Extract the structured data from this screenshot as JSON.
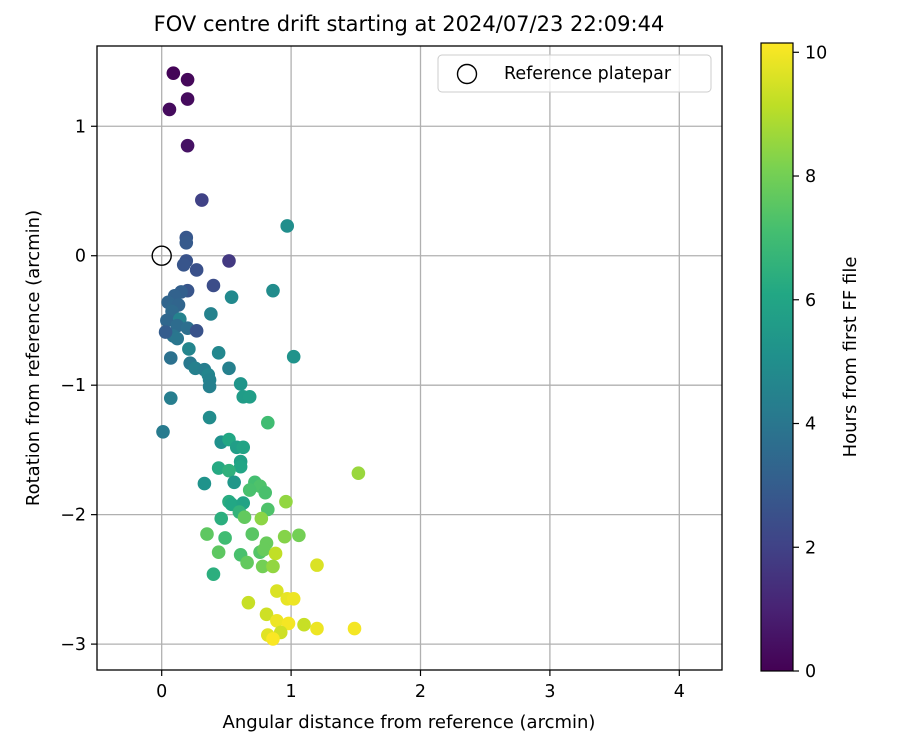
{
  "chart_data": {
    "type": "scatter",
    "title": "FOV centre drift starting at 2024/07/23 22:09:44",
    "xlabel": "Angular distance from reference (arcmin)",
    "ylabel": "Rotation from reference (arcmin)",
    "xlim": [
      -0.5,
      4.33
    ],
    "ylim": [
      -3.2,
      1.62
    ],
    "xticks": [
      0,
      1,
      2,
      3,
      4
    ],
    "xtick_labels": [
      "0",
      "1",
      "2",
      "3",
      "4"
    ],
    "yticks": [
      1,
      0,
      -1,
      -2,
      -3
    ],
    "ytick_labels": [
      "1",
      "0",
      "−1",
      "−2",
      "−3"
    ],
    "grid": true,
    "legend": {
      "label": "Reference platepar",
      "placement": "top-right",
      "marker": "open-circle"
    },
    "reference_point": {
      "x": 0,
      "y": 0
    },
    "colorbar": {
      "label": "Hours from first FF file",
      "colormap": "viridis",
      "range": [
        0,
        10.15
      ],
      "ticks": [
        0,
        2,
        4,
        6,
        8,
        10
      ],
      "tick_labels": [
        "0",
        "2",
        "4",
        "6",
        "8",
        "10"
      ]
    },
    "series": [
      {
        "colored_by": "hours",
        "points": [
          {
            "x": 0.09,
            "y": 1.41,
            "c": 0.1
          },
          {
            "x": 0.2,
            "y": 1.36,
            "c": 0.2
          },
          {
            "x": 0.2,
            "y": 1.21,
            "c": 0.3
          },
          {
            "x": 0.06,
            "y": 1.13,
            "c": 0.3
          },
          {
            "x": 0.2,
            "y": 0.85,
            "c": 0.5
          },
          {
            "x": 0.31,
            "y": 0.43,
            "c": 2.0
          },
          {
            "x": 0.19,
            "y": 0.14,
            "c": 2.8
          },
          {
            "x": 0.19,
            "y": 0.1,
            "c": 2.9
          },
          {
            "x": 0.52,
            "y": -0.04,
            "c": 1.7
          },
          {
            "x": 0.19,
            "y": -0.04,
            "c": 2.6
          },
          {
            "x": 0.17,
            "y": -0.07,
            "c": 2.7
          },
          {
            "x": 0.27,
            "y": -0.11,
            "c": 2.5
          },
          {
            "x": 0.4,
            "y": -0.23,
            "c": 2.4
          },
          {
            "x": 0.2,
            "y": -0.27,
            "c": 2.7
          },
          {
            "x": 0.15,
            "y": -0.28,
            "c": 3.1
          },
          {
            "x": 0.1,
            "y": -0.31,
            "c": 3.2
          },
          {
            "x": 0.05,
            "y": -0.36,
            "c": 3.3
          },
          {
            "x": 0.09,
            "y": -0.39,
            "c": 3.4
          },
          {
            "x": 0.13,
            "y": -0.38,
            "c": 3.3
          },
          {
            "x": 0.08,
            "y": -0.43,
            "c": 3.5
          },
          {
            "x": 0.04,
            "y": -0.5,
            "c": 3.4
          },
          {
            "x": 0.14,
            "y": -0.49,
            "c": 4.5
          },
          {
            "x": 0.12,
            "y": -0.54,
            "c": 3.6
          },
          {
            "x": 0.2,
            "y": -0.56,
            "c": 3.7
          },
          {
            "x": 0.27,
            "y": -0.58,
            "c": 2.6
          },
          {
            "x": 0.09,
            "y": -0.62,
            "c": 3.9
          },
          {
            "x": 0.12,
            "y": -0.64,
            "c": 4.0
          },
          {
            "x": 0.03,
            "y": -0.59,
            "c": 3.0
          },
          {
            "x": 0.21,
            "y": -0.72,
            "c": 4.6
          },
          {
            "x": 0.07,
            "y": -0.79,
            "c": 3.8
          },
          {
            "x": 0.22,
            "y": -0.83,
            "c": 4.1
          },
          {
            "x": 0.26,
            "y": -0.87,
            "c": 4.4
          },
          {
            "x": 0.33,
            "y": -0.88,
            "c": 4.3
          },
          {
            "x": 0.36,
            "y": -0.92,
            "c": 4.6
          },
          {
            "x": 0.37,
            "y": -0.96,
            "c": 4.5
          },
          {
            "x": 0.37,
            "y": -1.01,
            "c": 4.4
          },
          {
            "x": 0.44,
            "y": -0.75,
            "c": 4.7
          },
          {
            "x": 0.52,
            "y": -0.87,
            "c": 4.4
          },
          {
            "x": 0.38,
            "y": -0.45,
            "c": 4.5
          },
          {
            "x": 0.54,
            "y": -0.32,
            "c": 4.8
          },
          {
            "x": 0.86,
            "y": -0.27,
            "c": 4.9
          },
          {
            "x": 0.97,
            "y": 0.23,
            "c": 5.0
          },
          {
            "x": 1.02,
            "y": -0.78,
            "c": 5.2
          },
          {
            "x": 0.07,
            "y": -1.1,
            "c": 4.3
          },
          {
            "x": 0.01,
            "y": -1.36,
            "c": 4.2
          },
          {
            "x": 0.37,
            "y": -1.25,
            "c": 4.9
          },
          {
            "x": 0.61,
            "y": -0.99,
            "c": 5.3
          },
          {
            "x": 0.63,
            "y": -1.09,
            "c": 5.6
          },
          {
            "x": 0.68,
            "y": -1.09,
            "c": 5.7
          },
          {
            "x": 0.82,
            "y": -1.29,
            "c": 7.0
          },
          {
            "x": 0.46,
            "y": -1.44,
            "c": 5.1
          },
          {
            "x": 0.52,
            "y": -1.42,
            "c": 6.1
          },
          {
            "x": 0.58,
            "y": -1.48,
            "c": 5.7
          },
          {
            "x": 0.63,
            "y": -1.48,
            "c": 5.9
          },
          {
            "x": 0.61,
            "y": -1.59,
            "c": 5.8
          },
          {
            "x": 0.61,
            "y": -1.63,
            "c": 6.0
          },
          {
            "x": 0.44,
            "y": -1.64,
            "c": 6.2
          },
          {
            "x": 0.52,
            "y": -1.66,
            "c": 6.5
          },
          {
            "x": 0.56,
            "y": -1.75,
            "c": 5.4
          },
          {
            "x": 0.33,
            "y": -1.76,
            "c": 5.2
          },
          {
            "x": 0.72,
            "y": -1.75,
            "c": 7.1
          },
          {
            "x": 0.76,
            "y": -1.78,
            "c": 7.3
          },
          {
            "x": 0.68,
            "y": -1.81,
            "c": 7.2
          },
          {
            "x": 0.8,
            "y": -1.83,
            "c": 7.2
          },
          {
            "x": 0.52,
            "y": -1.9,
            "c": 6.3
          },
          {
            "x": 0.54,
            "y": -1.92,
            "c": 6.1
          },
          {
            "x": 0.63,
            "y": -1.91,
            "c": 5.9
          },
          {
            "x": 0.82,
            "y": -1.96,
            "c": 7.3
          },
          {
            "x": 0.6,
            "y": -1.98,
            "c": 6.6
          },
          {
            "x": 0.64,
            "y": -2.02,
            "c": 7.7
          },
          {
            "x": 0.46,
            "y": -2.03,
            "c": 6.4
          },
          {
            "x": 0.77,
            "y": -2.03,
            "c": 8.4
          },
          {
            "x": 0.96,
            "y": -1.9,
            "c": 8.5
          },
          {
            "x": 1.52,
            "y": -1.68,
            "c": 8.6
          },
          {
            "x": 0.35,
            "y": -2.15,
            "c": 7.6
          },
          {
            "x": 0.49,
            "y": -2.18,
            "c": 7.0
          },
          {
            "x": 0.7,
            "y": -2.15,
            "c": 7.5
          },
          {
            "x": 0.81,
            "y": -2.22,
            "c": 7.8
          },
          {
            "x": 0.95,
            "y": -2.17,
            "c": 8.3
          },
          {
            "x": 1.06,
            "y": -2.16,
            "c": 8.0
          },
          {
            "x": 0.44,
            "y": -2.29,
            "c": 7.6
          },
          {
            "x": 0.61,
            "y": -2.31,
            "c": 7.2
          },
          {
            "x": 0.76,
            "y": -2.29,
            "c": 7.4
          },
          {
            "x": 0.79,
            "y": -2.27,
            "c": 7.8
          },
          {
            "x": 0.88,
            "y": -2.3,
            "c": 9.2
          },
          {
            "x": 0.66,
            "y": -2.37,
            "c": 7.7
          },
          {
            "x": 0.78,
            "y": -2.4,
            "c": 8.0
          },
          {
            "x": 0.86,
            "y": -2.4,
            "c": 8.5
          },
          {
            "x": 0.4,
            "y": -2.46,
            "c": 6.4
          },
          {
            "x": 1.2,
            "y": -2.39,
            "c": 9.6
          },
          {
            "x": 0.89,
            "y": -2.59,
            "c": 9.6
          },
          {
            "x": 0.97,
            "y": -2.65,
            "c": 9.8
          },
          {
            "x": 1.02,
            "y": -2.65,
            "c": 9.9
          },
          {
            "x": 0.67,
            "y": -2.68,
            "c": 9.3
          },
          {
            "x": 0.81,
            "y": -2.77,
            "c": 9.4
          },
          {
            "x": 0.89,
            "y": -2.82,
            "c": 9.9
          },
          {
            "x": 0.98,
            "y": -2.84,
            "c": 10.0
          },
          {
            "x": 1.1,
            "y": -2.85,
            "c": 9.3
          },
          {
            "x": 1.2,
            "y": -2.88,
            "c": 9.9
          },
          {
            "x": 1.49,
            "y": -2.88,
            "c": 10.0
          },
          {
            "x": 0.92,
            "y": -2.91,
            "c": 9.4
          },
          {
            "x": 0.82,
            "y": -2.93,
            "c": 9.7
          },
          {
            "x": 0.86,
            "y": -2.96,
            "c": 10.1
          }
        ]
      }
    ]
  }
}
